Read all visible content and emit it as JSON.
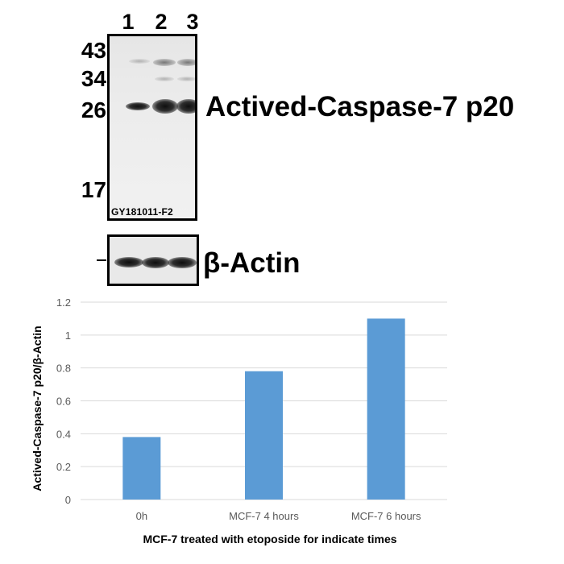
{
  "blot": {
    "lanes": [
      "1",
      "2",
      "3"
    ],
    "mw_markers": [
      "43",
      "34",
      "26",
      "17"
    ],
    "target_label": "Actived-Caspase-7 p20",
    "sample_id": "GY181011-F2",
    "loading_control_label": "β-Actin"
  },
  "chart_data": {
    "type": "bar",
    "categories": [
      "0h",
      "MCF-7 4 hours",
      "MCF-7 6 hours"
    ],
    "values": [
      0.38,
      0.78,
      1.1
    ],
    "ylim": [
      0,
      1.2
    ],
    "yticks": [
      "0",
      "0.2",
      "0.4",
      "0.6",
      "0.8",
      "1",
      "1.2"
    ],
    "ylabel": "Actived-Caspase-7 p20/β-Actin",
    "xlabel": "MCF-7 treated with etoposide for indicate times",
    "grid": true,
    "bar_color": "#5b9bd5",
    "grid_color": "#d9d9d9"
  }
}
